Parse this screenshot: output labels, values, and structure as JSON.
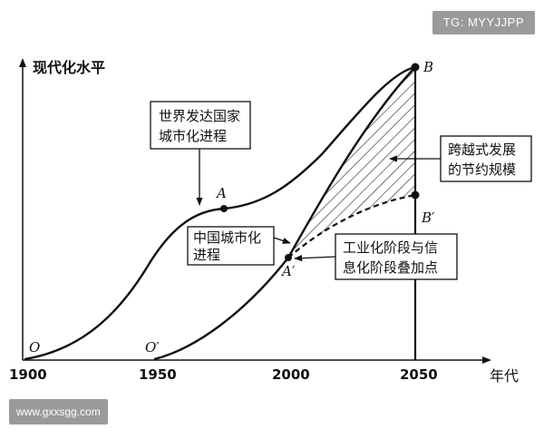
{
  "watermarks": {
    "top_right": "TG: MYYJJPP",
    "bottom_left": "www.gxxsgg.com"
  },
  "axes": {
    "y_label": "现代化水平",
    "x_label": "年代",
    "x_ticks": [
      "1900",
      "1950",
      "2000",
      "2050"
    ]
  },
  "points": {
    "origin_O": "O",
    "origin_O2": "O′",
    "A": "A",
    "A2": "A′",
    "B": "B",
    "B2": "B′"
  },
  "annotations": {
    "developed": [
      "世界发达国家",
      "城市化进程"
    ],
    "china": [
      "中国城市化",
      "进程"
    ],
    "leap": [
      "跨越式发展",
      "的节约规模"
    ],
    "overlap": [
      "工业化阶段与信",
      "息化阶段叠加点"
    ]
  }
}
